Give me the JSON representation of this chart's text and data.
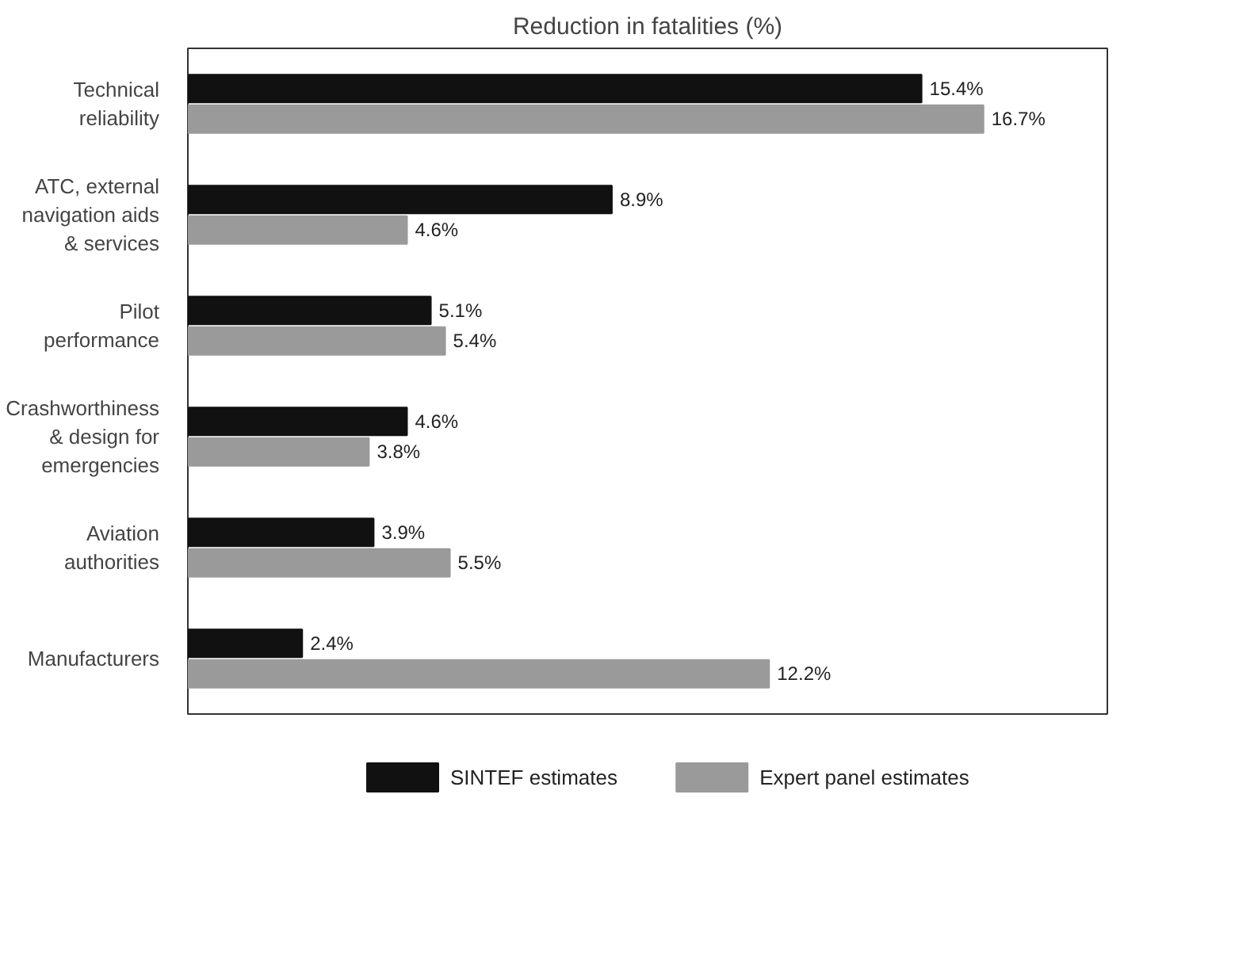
{
  "chart_data": {
    "type": "bar",
    "orientation": "horizontal",
    "title": "Reduction in fatalities (%)",
    "categories": [
      "Technical\nreliability",
      "ATC, external\nnavigation aids\n& services",
      "Pilot\nperformance",
      "Crashworthiness\n& design for\nemergencies",
      "Aviation\nauthorities",
      "Manufacturers"
    ],
    "series": [
      {
        "name": "SINTEF estimates",
        "color": "#111111",
        "values": [
          15.4,
          8.9,
          5.1,
          4.6,
          3.9,
          2.4
        ],
        "value_labels": [
          "15.4%",
          "8.9%",
          "5.1%",
          "4.6%",
          "3.9%",
          "2.4%"
        ]
      },
      {
        "name": "Expert panel estimates",
        "color": "#9a9a9a",
        "values": [
          16.7,
          4.6,
          5.4,
          3.8,
          5.5,
          12.2
        ],
        "value_labels": [
          "16.7%",
          "4.6%",
          "5.4%",
          "3.8%",
          "5.5%",
          "12.2%"
        ]
      }
    ],
    "xlim": [
      0,
      19.3
    ],
    "tick_labels": "y",
    "grid": false,
    "legend": "bottom"
  }
}
